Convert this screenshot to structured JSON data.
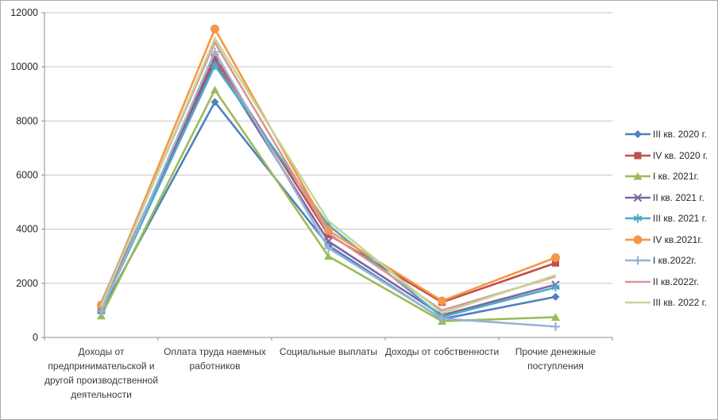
{
  "window": {
    "background": "#ffffff",
    "border_color": "#a9a9a9"
  },
  "chart_data": {
    "type": "line",
    "title": "",
    "xlabel": "",
    "ylabel": "",
    "ylim": [
      0,
      12000
    ],
    "ytick_step": 2000,
    "yticks": [
      0,
      2000,
      4000,
      6000,
      8000,
      10000,
      12000
    ],
    "grid": "horizontal",
    "grid_color": "#c6c6c6",
    "axis_color": "#8c8c8c",
    "tick_label_color": "#262626",
    "legend_position": "right",
    "categories": [
      "Доходы от предпринимательской и другой производственной деятельности",
      "Оплата труда наемных работников",
      "Социальные выплаты",
      "Доходы от собственности",
      "Прочие денежные поступления"
    ],
    "series": [
      {
        "name": "III кв. 2020 г.",
        "color": "#4F81BD",
        "marker": "diamond",
        "values": [
          950,
          8700,
          3400,
          680,
          1500
        ]
      },
      {
        "name": "IV кв. 2020 г.",
        "color": "#C0504D",
        "marker": "square",
        "values": [
          1100,
          10350,
          3800,
          1300,
          2750
        ]
      },
      {
        "name": "I кв. 2021г.",
        "color": "#9BBB59",
        "marker": "triangle",
        "values": [
          800,
          9150,
          3000,
          600,
          750
        ]
      },
      {
        "name": "II кв. 2021 г.",
        "color": "#8064A2",
        "marker": "x",
        "values": [
          1000,
          10200,
          3550,
          820,
          1950
        ]
      },
      {
        "name": "III кв. 2021 г.",
        "color": "#4BACC6",
        "marker": "asterisk",
        "values": [
          1000,
          10050,
          4150,
          760,
          1850
        ]
      },
      {
        "name": "IV кв.2021г.",
        "color": "#F79646",
        "marker": "circle",
        "values": [
          1200,
          11400,
          3950,
          1350,
          2950
        ]
      },
      {
        "name": "I кв.2022г.",
        "color": "#95B3D7",
        "marker": "plus",
        "values": [
          950,
          10550,
          3300,
          700,
          400
        ]
      },
      {
        "name": "II кв.2022г.",
        "color": "#D99694",
        "marker": "none",
        "values": [
          1300,
          10900,
          3850,
          1000,
          2250
        ]
      },
      {
        "name": "III кв. 2022 г.",
        "color": "#C3D69B",
        "marker": "none",
        "values": [
          1150,
          11050,
          4300,
          900,
          2300
        ]
      }
    ]
  }
}
